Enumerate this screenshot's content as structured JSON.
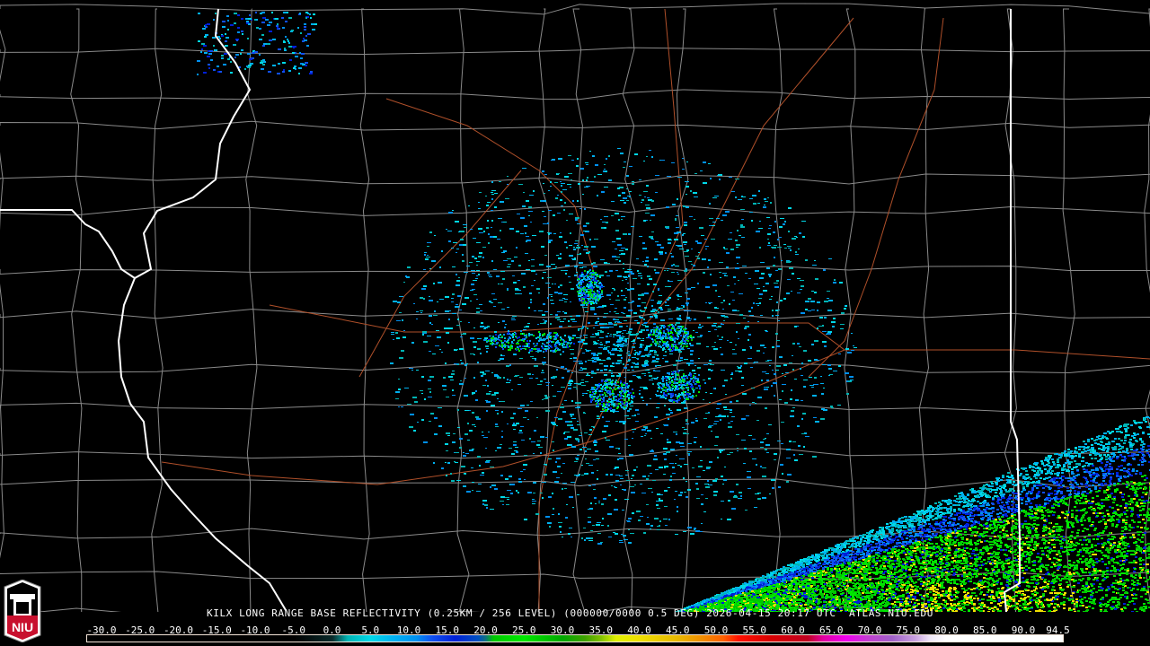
{
  "product": {
    "caption": "KILX LONG RANGE BASE REFLECTIVITY (0.25KM / 256 LEVEL) (000000/0000 0.5 DEG) 2026-04-15 20:17 UTC  ATLAS.NIU.EDU"
  },
  "logo": {
    "text": "NIU",
    "color": "#c8102e"
  },
  "legend": {
    "unit_labels": [
      "-30.0",
      "-25.0",
      "-20.0",
      "-15.0",
      "-10.0",
      "-5.0",
      "0.0",
      "5.0",
      "10.0",
      "15.0",
      "20.0",
      "25.0",
      "30.0",
      "35.0",
      "40.0",
      "45.0",
      "50.0",
      "55.0",
      "60.0",
      "65.0",
      "70.0",
      "75.0",
      "80.0",
      "85.0",
      "90.0",
      "94.5"
    ],
    "stops": [
      {
        "v": -32,
        "c": "#000000"
      },
      {
        "v": -5,
        "c": "#000000"
      },
      {
        "v": 0,
        "c": "#0a2a2a"
      },
      {
        "v": 1,
        "c": "#087070"
      },
      {
        "v": 2,
        "c": "#00b4b4"
      },
      {
        "v": 5,
        "c": "#00d8e8"
      },
      {
        "v": 8,
        "c": "#00b0f0"
      },
      {
        "v": 11,
        "c": "#0090f0"
      },
      {
        "v": 13,
        "c": "#1050f0"
      },
      {
        "v": 16,
        "c": "#0020d8"
      },
      {
        "v": 19,
        "c": "#0050c0"
      },
      {
        "v": 20,
        "c": "#107080"
      },
      {
        "v": 21,
        "c": "#00c800"
      },
      {
        "v": 25,
        "c": "#00e800"
      },
      {
        "v": 30,
        "c": "#00a800"
      },
      {
        "v": 33,
        "c": "#40a000"
      },
      {
        "v": 35,
        "c": "#80c000"
      },
      {
        "v": 37,
        "c": "#e0f000"
      },
      {
        "v": 40,
        "c": "#f0e000"
      },
      {
        "v": 45,
        "c": "#e8b800"
      },
      {
        "v": 48,
        "c": "#f09000"
      },
      {
        "v": 51,
        "c": "#ff6000"
      },
      {
        "v": 53,
        "c": "#ff1000"
      },
      {
        "v": 57,
        "c": "#d80000"
      },
      {
        "v": 62,
        "c": "#c00020"
      },
      {
        "v": 64,
        "c": "#e000a0"
      },
      {
        "v": 67,
        "c": "#f000f0"
      },
      {
        "v": 70,
        "c": "#c040d0"
      },
      {
        "v": 73,
        "c": "#a060c8"
      },
      {
        "v": 76,
        "c": "#c8a0e0"
      },
      {
        "v": 78,
        "c": "#f0e8f8"
      },
      {
        "v": 80,
        "c": "#ffffff"
      },
      {
        "v": 95.3,
        "c": "#ffffff"
      }
    ]
  },
  "colors": {
    "county_lines": "#8a8a8a",
    "state_lines": "#ffffff",
    "highways": "#b0502a"
  }
}
